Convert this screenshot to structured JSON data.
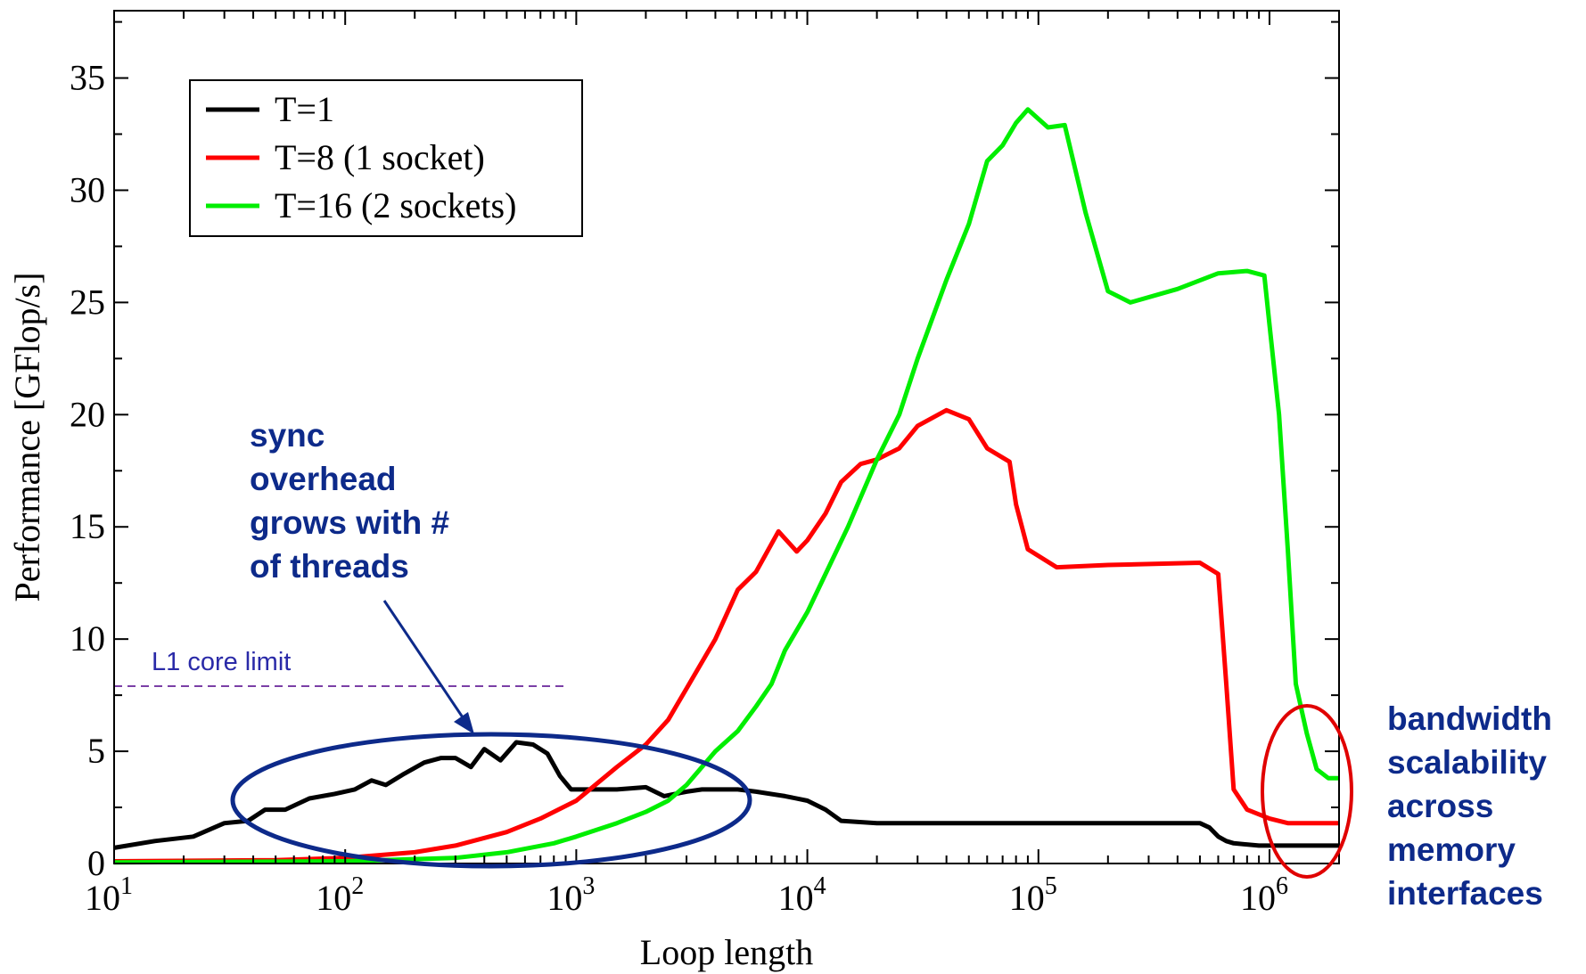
{
  "chart_data": {
    "type": "line",
    "xlabel": "Loop length",
    "ylabel": "Performance [GFlop/s]",
    "xscale": "log",
    "xlim": [
      10,
      2000000
    ],
    "ylim": [
      0,
      38
    ],
    "x_ticks": [
      {
        "value": 10,
        "base": "10",
        "exp": "1"
      },
      {
        "value": 100,
        "base": "10",
        "exp": "2"
      },
      {
        "value": 1000,
        "base": "10",
        "exp": "3"
      },
      {
        "value": 10000,
        "base": "10",
        "exp": "4"
      },
      {
        "value": 100000,
        "base": "10",
        "exp": "5"
      },
      {
        "value": 1000000,
        "base": "10",
        "exp": "6"
      }
    ],
    "y_ticks": [
      0,
      5,
      10,
      15,
      20,
      25,
      30,
      35
    ],
    "y_tick_labels": [
      "0",
      "5",
      "10",
      "15",
      "20",
      "25",
      "30",
      "35"
    ],
    "grid": false,
    "legend": {
      "placement": "top-left",
      "entries": [
        "T=1",
        "T=8 (1 socket)",
        "T=16 (2 sockets)"
      ]
    },
    "series": [
      {
        "name": "T=1",
        "color": "#000000",
        "points": [
          [
            10,
            0.7
          ],
          [
            15,
            1.0
          ],
          [
            22,
            1.2
          ],
          [
            30,
            1.8
          ],
          [
            38,
            1.9
          ],
          [
            45,
            2.4
          ],
          [
            55,
            2.4
          ],
          [
            70,
            2.9
          ],
          [
            90,
            3.1
          ],
          [
            110,
            3.3
          ],
          [
            130,
            3.7
          ],
          [
            150,
            3.5
          ],
          [
            180,
            4.0
          ],
          [
            220,
            4.5
          ],
          [
            260,
            4.7
          ],
          [
            300,
            4.7
          ],
          [
            350,
            4.3
          ],
          [
            400,
            5.1
          ],
          [
            470,
            4.6
          ],
          [
            550,
            5.4
          ],
          [
            650,
            5.3
          ],
          [
            750,
            4.9
          ],
          [
            850,
            3.9
          ],
          [
            950,
            3.3
          ],
          [
            1500,
            3.3
          ],
          [
            2000,
            3.4
          ],
          [
            2400,
            3.0
          ],
          [
            3000,
            3.2
          ],
          [
            3500,
            3.3
          ],
          [
            5000,
            3.3
          ],
          [
            6000,
            3.2
          ],
          [
            8000,
            3.0
          ],
          [
            10000,
            2.8
          ],
          [
            12000,
            2.4
          ],
          [
            14000,
            1.9
          ],
          [
            20000,
            1.8
          ],
          [
            100000,
            1.8
          ],
          [
            500000,
            1.8
          ],
          [
            550000,
            1.6
          ],
          [
            600000,
            1.2
          ],
          [
            650000,
            1.0
          ],
          [
            700000,
            0.9
          ],
          [
            900000,
            0.8
          ],
          [
            2000000,
            0.8
          ]
        ]
      },
      {
        "name": "T=8 (1 socket)",
        "color": "#ff0000",
        "points": [
          [
            10,
            0.1
          ],
          [
            50,
            0.15
          ],
          [
            100,
            0.25
          ],
          [
            200,
            0.5
          ],
          [
            300,
            0.8
          ],
          [
            500,
            1.4
          ],
          [
            700,
            2.0
          ],
          [
            1000,
            2.8
          ],
          [
            1500,
            4.3
          ],
          [
            2000,
            5.3
          ],
          [
            2500,
            6.4
          ],
          [
            3000,
            7.8
          ],
          [
            4000,
            10.0
          ],
          [
            5000,
            12.2
          ],
          [
            6000,
            13.0
          ],
          [
            7500,
            14.8
          ],
          [
            9000,
            13.9
          ],
          [
            10000,
            14.4
          ],
          [
            12000,
            15.6
          ],
          [
            14000,
            17.0
          ],
          [
            17000,
            17.8
          ],
          [
            20000,
            18.0
          ],
          [
            25000,
            18.5
          ],
          [
            30000,
            19.5
          ],
          [
            40000,
            20.2
          ],
          [
            50000,
            19.8
          ],
          [
            60000,
            18.5
          ],
          [
            75000,
            17.9
          ],
          [
            80000,
            16.0
          ],
          [
            90000,
            14.0
          ],
          [
            120000,
            13.2
          ],
          [
            200000,
            13.3
          ],
          [
            500000,
            13.4
          ],
          [
            600000,
            12.9
          ],
          [
            650000,
            8.0
          ],
          [
            700000,
            3.3
          ],
          [
            800000,
            2.4
          ],
          [
            1000000,
            2.0
          ],
          [
            1200000,
            1.8
          ],
          [
            2000000,
            1.8
          ]
        ]
      },
      {
        "name": "T=16 (2 sockets)",
        "color": "#00ee00",
        "points": [
          [
            10,
            0.05
          ],
          [
            100,
            0.1
          ],
          [
            300,
            0.25
          ],
          [
            500,
            0.5
          ],
          [
            800,
            0.9
          ],
          [
            1000,
            1.2
          ],
          [
            1500,
            1.8
          ],
          [
            2000,
            2.3
          ],
          [
            2500,
            2.8
          ],
          [
            3000,
            3.5
          ],
          [
            4000,
            5.0
          ],
          [
            5000,
            5.9
          ],
          [
            6000,
            7.0
          ],
          [
            7000,
            8.0
          ],
          [
            8000,
            9.5
          ],
          [
            10000,
            11.2
          ],
          [
            15000,
            15.0
          ],
          [
            20000,
            18.0
          ],
          [
            25000,
            20.0
          ],
          [
            30000,
            22.5
          ],
          [
            40000,
            26.0
          ],
          [
            50000,
            28.5
          ],
          [
            60000,
            31.3
          ],
          [
            70000,
            32.0
          ],
          [
            80000,
            33.0
          ],
          [
            90000,
            33.6
          ],
          [
            110000,
            32.8
          ],
          [
            130000,
            32.9
          ],
          [
            160000,
            29.0
          ],
          [
            200000,
            25.5
          ],
          [
            250000,
            25.0
          ],
          [
            400000,
            25.6
          ],
          [
            600000,
            26.3
          ],
          [
            800000,
            26.4
          ],
          [
            950000,
            26.2
          ],
          [
            1000000,
            24.0
          ],
          [
            1100000,
            20.0
          ],
          [
            1200000,
            14.0
          ],
          [
            1300000,
            8.0
          ],
          [
            1450000,
            5.8
          ],
          [
            1600000,
            4.2
          ],
          [
            1800000,
            3.8
          ],
          [
            2000000,
            3.8
          ]
        ]
      }
    ],
    "reference_line": {
      "label": "L1 core limit",
      "y": 7.9,
      "x_start": 10,
      "x_end": 900,
      "color": "#7b3fa6"
    },
    "annotations": {
      "sync_overhead": {
        "lines": [
          "sync",
          "overhead",
          "grows with #",
          "of threads"
        ],
        "color": "#0d2a8a"
      },
      "bandwidth": {
        "lines": [
          "bandwidth",
          "scalability",
          "across",
          "memory",
          "interfaces"
        ],
        "color": "#0d2a8a",
        "circle_color": "#e00000"
      }
    }
  }
}
